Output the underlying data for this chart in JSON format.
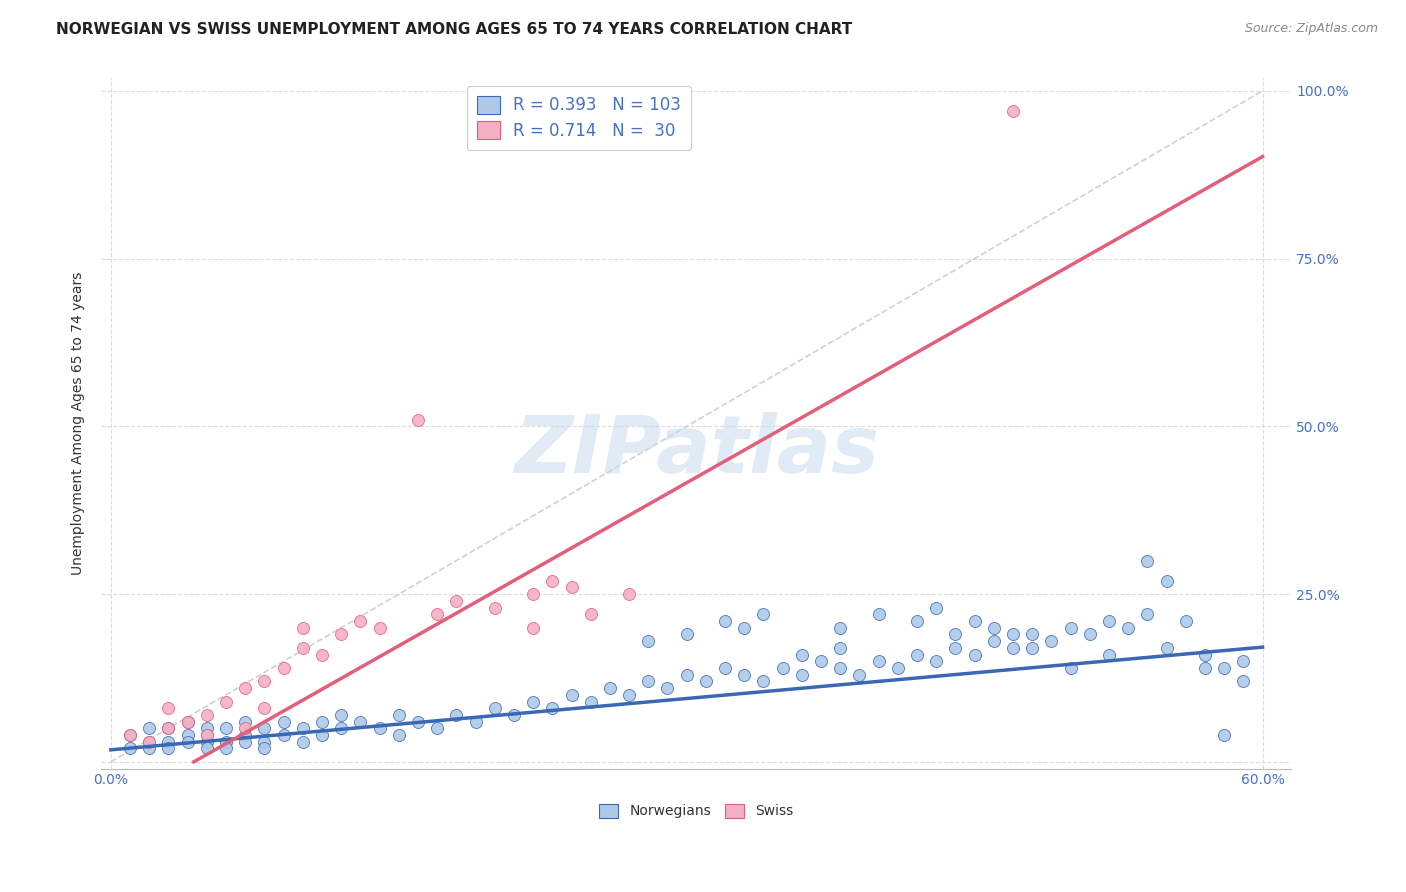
{
  "title": "NORWEGIAN VS SWISS UNEMPLOYMENT AMONG AGES 65 TO 74 YEARS CORRELATION CHART",
  "source": "Source: ZipAtlas.com",
  "ylabel": "Unemployment Among Ages 65 to 74 years",
  "xlim": [
    0.0,
    0.62
  ],
  "ylim": [
    -0.02,
    1.05
  ],
  "plot_xlim": [
    0.0,
    0.6
  ],
  "plot_ylim": [
    0.0,
    1.0
  ],
  "norwegian_R": 0.393,
  "norwegian_N": 103,
  "swiss_R": 0.714,
  "swiss_N": 30,
  "norwegian_color": "#adc9e8",
  "swiss_color": "#f5afc5",
  "norwegian_line_color": "#3a68b5",
  "swiss_line_color": "#e0607a",
  "diagonal_line_color": "#cccccc",
  "background_color": "#ffffff",
  "grid_color": "#dddddd",
  "title_color": "#222222",
  "axis_color": "#4472c4",
  "watermark": "ZIPatlas",
  "nor_slope": 0.255,
  "nor_intercept": 0.018,
  "sw_slope": 1.62,
  "sw_intercept": -0.07,
  "nor_x": [
    0.01,
    0.01,
    0.02,
    0.02,
    0.02,
    0.03,
    0.03,
    0.03,
    0.04,
    0.04,
    0.04,
    0.05,
    0.05,
    0.05,
    0.05,
    0.06,
    0.06,
    0.06,
    0.07,
    0.07,
    0.07,
    0.08,
    0.08,
    0.08,
    0.09,
    0.09,
    0.1,
    0.1,
    0.11,
    0.11,
    0.12,
    0.12,
    0.13,
    0.14,
    0.15,
    0.15,
    0.16,
    0.17,
    0.18,
    0.19,
    0.2,
    0.21,
    0.22,
    0.23,
    0.24,
    0.25,
    0.26,
    0.27,
    0.28,
    0.29,
    0.3,
    0.31,
    0.32,
    0.33,
    0.34,
    0.35,
    0.36,
    0.37,
    0.38,
    0.39,
    0.4,
    0.41,
    0.42,
    0.43,
    0.44,
    0.45,
    0.46,
    0.47,
    0.48,
    0.49,
    0.5,
    0.51,
    0.52,
    0.53,
    0.54,
    0.55,
    0.56,
    0.57,
    0.58,
    0.59,
    0.32,
    0.34,
    0.38,
    0.4,
    0.42,
    0.44,
    0.46,
    0.48,
    0.5,
    0.52,
    0.54,
    0.55,
    0.57,
    0.58,
    0.59,
    0.43,
    0.45,
    0.47,
    0.36,
    0.38,
    0.28,
    0.3,
    0.33
  ],
  "nor_y": [
    0.02,
    0.04,
    0.03,
    0.05,
    0.02,
    0.03,
    0.05,
    0.02,
    0.04,
    0.03,
    0.06,
    0.03,
    0.05,
    0.02,
    0.04,
    0.03,
    0.05,
    0.02,
    0.04,
    0.03,
    0.06,
    0.03,
    0.05,
    0.02,
    0.04,
    0.06,
    0.05,
    0.03,
    0.04,
    0.06,
    0.05,
    0.07,
    0.06,
    0.05,
    0.07,
    0.04,
    0.06,
    0.05,
    0.07,
    0.06,
    0.08,
    0.07,
    0.09,
    0.08,
    0.1,
    0.09,
    0.11,
    0.1,
    0.12,
    0.11,
    0.13,
    0.12,
    0.14,
    0.13,
    0.12,
    0.14,
    0.13,
    0.15,
    0.14,
    0.13,
    0.15,
    0.14,
    0.16,
    0.15,
    0.17,
    0.16,
    0.18,
    0.17,
    0.19,
    0.18,
    0.2,
    0.19,
    0.21,
    0.2,
    0.22,
    0.17,
    0.21,
    0.16,
    0.14,
    0.12,
    0.21,
    0.22,
    0.2,
    0.22,
    0.21,
    0.19,
    0.2,
    0.17,
    0.14,
    0.16,
    0.3,
    0.27,
    0.14,
    0.04,
    0.15,
    0.23,
    0.21,
    0.19,
    0.16,
    0.17,
    0.18,
    0.19,
    0.2
  ],
  "sw_x": [
    0.01,
    0.02,
    0.03,
    0.03,
    0.04,
    0.05,
    0.05,
    0.06,
    0.07,
    0.07,
    0.08,
    0.08,
    0.09,
    0.1,
    0.1,
    0.11,
    0.12,
    0.13,
    0.14,
    0.16,
    0.17,
    0.18,
    0.2,
    0.22,
    0.22,
    0.23,
    0.24,
    0.25,
    0.27,
    0.47
  ],
  "sw_y": [
    0.04,
    0.03,
    0.05,
    0.08,
    0.06,
    0.07,
    0.04,
    0.09,
    0.11,
    0.05,
    0.12,
    0.08,
    0.14,
    0.2,
    0.17,
    0.16,
    0.19,
    0.21,
    0.2,
    0.51,
    0.22,
    0.24,
    0.23,
    0.25,
    0.2,
    0.27,
    0.26,
    0.22,
    0.25,
    0.97
  ]
}
